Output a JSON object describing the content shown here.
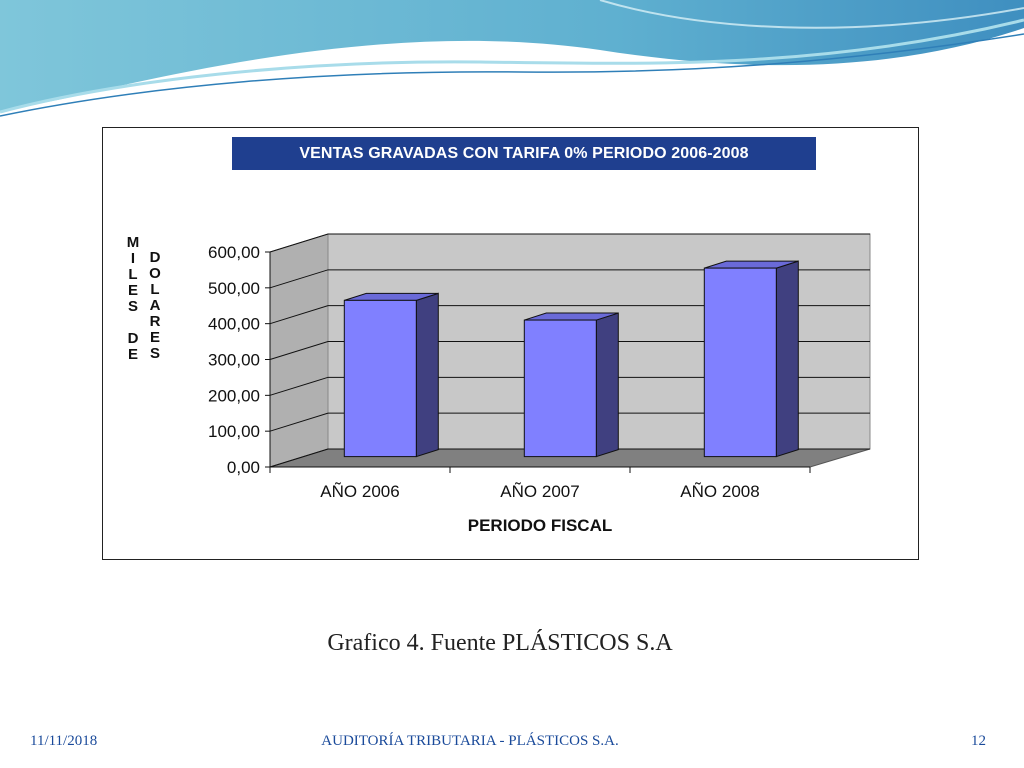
{
  "chart_data": {
    "type": "bar",
    "title": "VENTAS GRAVADAS CON TARIFA 0% PERIODO 2006-2008",
    "categories": [
      "AÑO 2006",
      "AÑO 2007",
      "AÑO 2008"
    ],
    "values": [
      450,
      395,
      540
    ],
    "xlabel": "PERIODO FISCAL",
    "ylabel_part1": "MILES DE",
    "ylabel_part2": "DOLARES",
    "ylim": [
      0,
      600
    ],
    "yticks": [
      0,
      100,
      200,
      300,
      400,
      500,
      600
    ],
    "ytick_labels": [
      "0,00",
      "100,00",
      "200,00",
      "300,00",
      "400,00",
      "500,00",
      "600,00"
    ],
    "grid": true,
    "bar_color": "#8080ff",
    "bar_side_color": "#404080",
    "wall_color": "#c8c8c8"
  },
  "caption": "Grafico 4.  Fuente PLÁSTICOS S.A",
  "footer": {
    "date": "11/11/2018",
    "center": "AUDITORÍA TRIBUTARIA  -  PLÁSTICOS S.A.",
    "page": "12"
  }
}
